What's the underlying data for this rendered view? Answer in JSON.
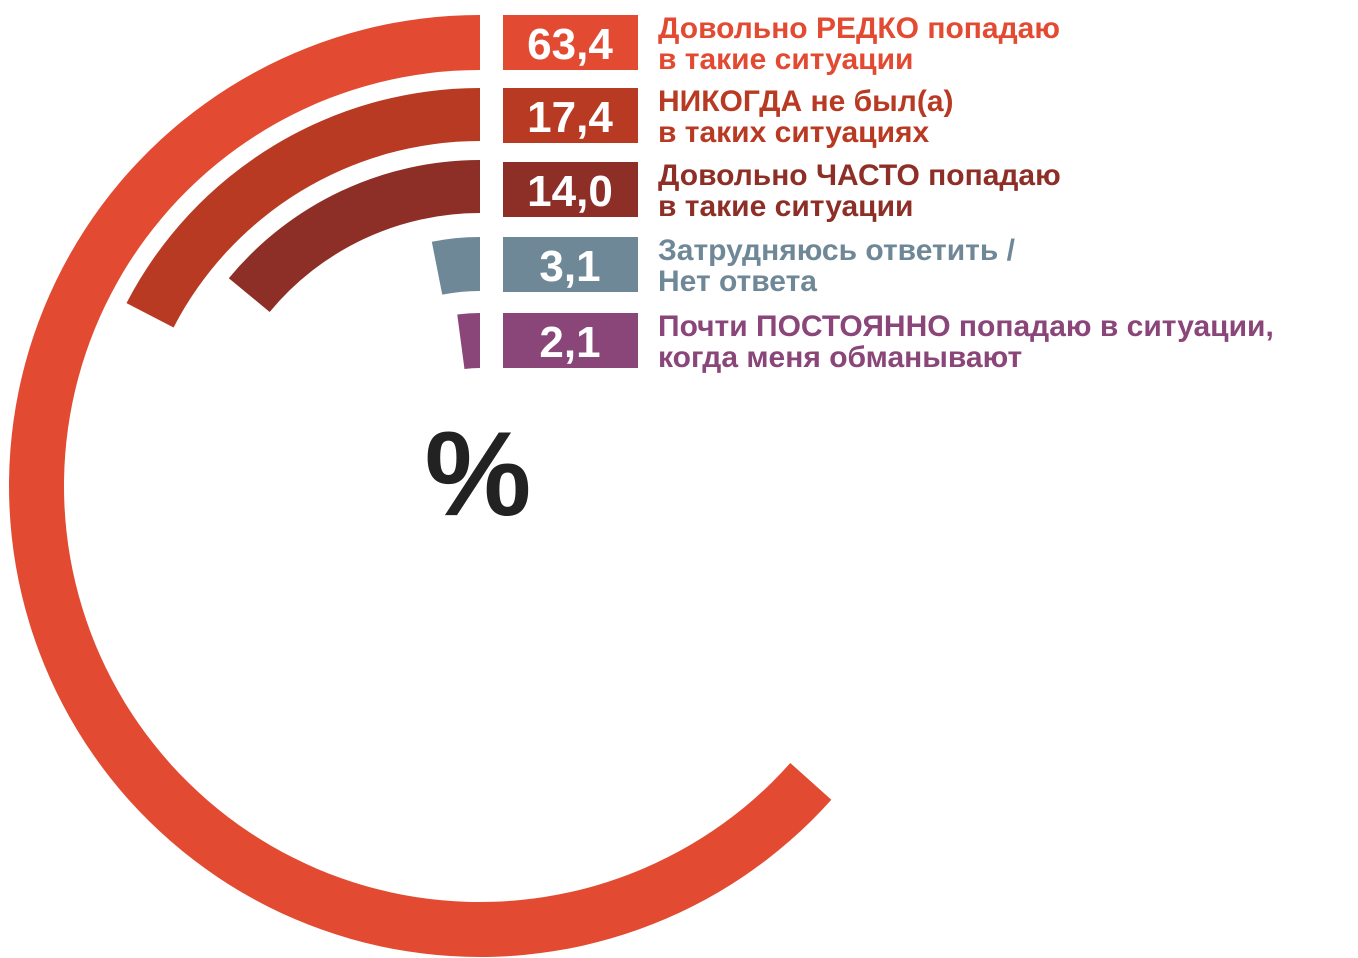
{
  "chart_data": {
    "type": "radial_bar",
    "unit": "%",
    "categories": [
      [
        "Довольно РЕДКО попадаю",
        "в такие ситуации"
      ],
      [
        "НИКОГДА не был(а)",
        "в таких ситуациях"
      ],
      [
        "Довольно ЧАСТО попадаю",
        "в такие ситуации"
      ],
      [
        "Затрудняюсь ответить /",
        "Нет ответа"
      ],
      [
        "Почти ПОСТОЯННО попадаю в ситуации,",
        "когда меня обманывают"
      ]
    ],
    "values": [
      63.4,
      17.4,
      14.0,
      3.1,
      2.1
    ],
    "value_labels": [
      "63,4",
      "17,4",
      "14,0",
      "3,1",
      "2,1"
    ],
    "colors": [
      "#e34a32",
      "#b93a23",
      "#8e2f27",
      "#6f8898",
      "#8a4579"
    ],
    "ylim": [
      0,
      100
    ]
  }
}
